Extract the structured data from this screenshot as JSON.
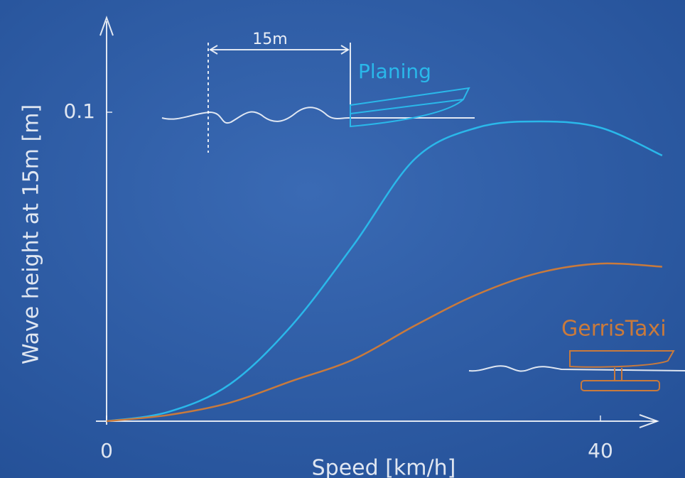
{
  "chart_data": {
    "type": "line",
    "x_label": "Speed [km/h]",
    "y_label": "Wave height at 15m [m]",
    "annotations": [
      "15m"
    ],
    "x": [
      0,
      5,
      10,
      15,
      20,
      25,
      30,
      35,
      40,
      45
    ],
    "series": [
      {
        "name": "Planing",
        "color": "#2ab8ea",
        "values": [
          0,
          0.003,
          0.012,
          0.031,
          0.057,
          0.085,
          0.095,
          0.097,
          0.095,
          0.086
        ]
      },
      {
        "name": "GerrisTaxi",
        "color": "#c97a3c",
        "values": [
          0,
          0.002,
          0.006,
          0.013,
          0.02,
          0.031,
          0.041,
          0.048,
          0.051,
          0.05
        ]
      }
    ],
    "xlim": [
      0,
      45
    ],
    "ylim": [
      0,
      0.13
    ],
    "xticks": [
      0,
      40
    ],
    "yticks": [
      0.1
    ]
  }
}
